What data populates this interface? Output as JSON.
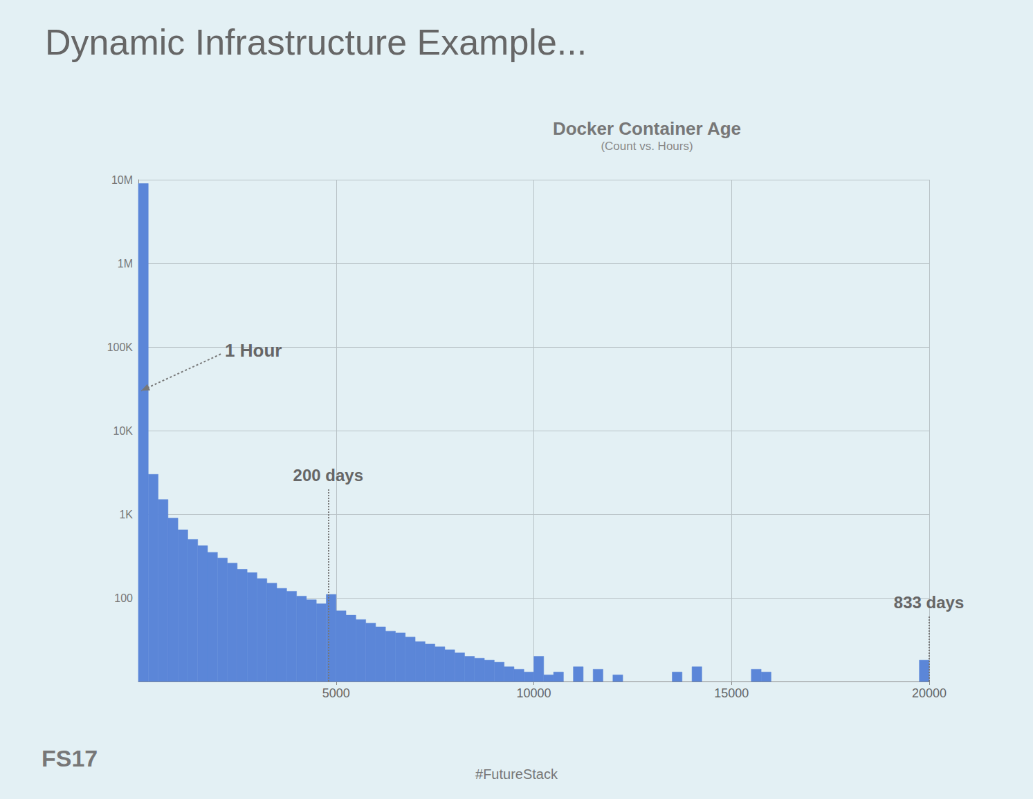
{
  "chart_data": {
    "type": "histogram",
    "slide_title": "Dynamic Infrastructure Example...",
    "title": "Docker Container Age",
    "subtitle": "(Count vs. Hours)",
    "footer": "#FutureStack",
    "logo": "FS17",
    "color": "#5b86d8",
    "log": "y",
    "grid": true,
    "bins": [
      0,
      250,
      500,
      750,
      1000,
      1250,
      1500,
      1750,
      2000,
      2250,
      2500,
      2750,
      3000,
      3250,
      3500,
      3750,
      4000,
      4250,
      4500,
      4750,
      5000,
      5250,
      5500,
      5750,
      6000,
      6250,
      6500,
      6750,
      7000,
      7250,
      7500,
      7750,
      8000,
      8250,
      8500,
      8750,
      9000,
      9250,
      9500,
      9750,
      10000,
      10250,
      10500,
      10750,
      11000,
      11250,
      11500,
      11750,
      12000,
      12250,
      12500,
      12750,
      13000,
      13250,
      13500,
      13750,
      14000,
      14250,
      14500,
      14750,
      15000,
      15250,
      15500,
      15750,
      16000,
      16250,
      16500,
      16750,
      17000,
      17250,
      17500,
      17750,
      18000,
      18250,
      18500,
      18750,
      19000,
      19250,
      19500,
      19750,
      20000
    ],
    "values": [
      9000000,
      3000,
      1500,
      900,
      650,
      500,
      420,
      350,
      300,
      260,
      220,
      200,
      170,
      150,
      130,
      120,
      105,
      95,
      85,
      110,
      70,
      62,
      55,
      50,
      45,
      40,
      38,
      34,
      30,
      28,
      26,
      24,
      22,
      20,
      19,
      18,
      17,
      15,
      14,
      13,
      20,
      12,
      13,
      null,
      15,
      null,
      14,
      null,
      12,
      null,
      null,
      null,
      null,
      null,
      13,
      null,
      15,
      null,
      null,
      null,
      null,
      null,
      14,
      13,
      null,
      null,
      null,
      null,
      null,
      null,
      null,
      null,
      null,
      null,
      null,
      null,
      null,
      null,
      null,
      18
    ],
    "xlim": [
      0,
      20000
    ],
    "xticks": [
      5000,
      10000,
      15000,
      20000
    ],
    "ylim": [
      10,
      10000000
    ],
    "yticks": [
      100,
      {
        "value": 1000,
        "label": "1K"
      },
      {
        "value": 10000,
        "label": "10K"
      },
      {
        "value": 100000,
        "label": "100K"
      },
      {
        "value": 1000000,
        "label": "1M"
      },
      {
        "value": 10000000,
        "label": "10M"
      }
    ],
    "annotations": [
      {
        "text": "1 Hour",
        "x": 1,
        "y": 30000
      }
    ],
    "vlines": [
      {
        "text": "200 days",
        "x": 4800,
        "y": 2000
      },
      {
        "text": "833 days",
        "x": 19992,
        "y": 60
      }
    ]
  }
}
